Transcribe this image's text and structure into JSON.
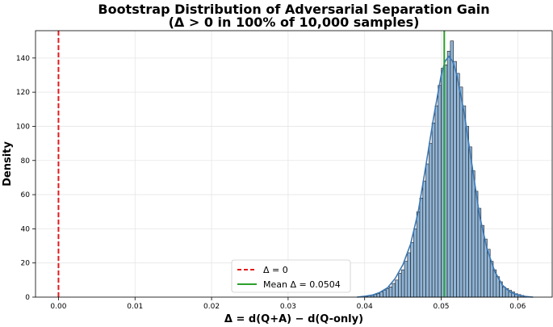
{
  "chart_data": {
    "type": "histogram",
    "title": "Bootstrap Distribution of Adversarial Separation Gain",
    "subtitle": "(Δ > 0 in 100% of 10,000 samples)",
    "xlabel": "Δ = d(Q+A) − d(Q-only)",
    "ylabel": "Density",
    "xlim": [
      -0.003,
      0.0645
    ],
    "ylim": [
      0,
      156
    ],
    "x_ticks": [
      0.0,
      0.01,
      0.02,
      0.03,
      0.04,
      0.05,
      0.06
    ],
    "x_tick_labels": [
      "0.00",
      "0.01",
      "0.02",
      "0.03",
      "0.04",
      "0.05",
      "0.06"
    ],
    "y_ticks": [
      0,
      20,
      40,
      60,
      80,
      100,
      120,
      140
    ],
    "y_tick_labels": [
      "0",
      "20",
      "40",
      "60",
      "80",
      "100",
      "120",
      "140"
    ],
    "grid": true,
    "bar_color": "#8fb4d6",
    "bar_edge_color": "#1a1a1a",
    "kde_color": "#3c78b4",
    "bin_width": 0.0004,
    "bins": [
      [
        0.04,
        0.5
      ],
      [
        0.0404,
        1
      ],
      [
        0.0408,
        1
      ],
      [
        0.0412,
        1.5
      ],
      [
        0.0416,
        2
      ],
      [
        0.042,
        3
      ],
      [
        0.0424,
        4
      ],
      [
        0.0428,
        5
      ],
      [
        0.0432,
        6
      ],
      [
        0.0436,
        8
      ],
      [
        0.044,
        10
      ],
      [
        0.0444,
        14
      ],
      [
        0.0448,
        16
      ],
      [
        0.0452,
        21
      ],
      [
        0.0456,
        26
      ],
      [
        0.046,
        32
      ],
      [
        0.0464,
        40
      ],
      [
        0.0468,
        50
      ],
      [
        0.0472,
        58
      ],
      [
        0.0476,
        68
      ],
      [
        0.048,
        78
      ],
      [
        0.0484,
        90
      ],
      [
        0.0488,
        102
      ],
      [
        0.0492,
        112
      ],
      [
        0.0496,
        124
      ],
      [
        0.05,
        134
      ],
      [
        0.0504,
        136
      ],
      [
        0.0508,
        144
      ],
      [
        0.0512,
        150
      ],
      [
        0.0516,
        138
      ],
      [
        0.052,
        131
      ],
      [
        0.0524,
        123
      ],
      [
        0.0528,
        112
      ],
      [
        0.0532,
        100
      ],
      [
        0.0536,
        88
      ],
      [
        0.054,
        74
      ],
      [
        0.0544,
        62
      ],
      [
        0.0548,
        52
      ],
      [
        0.0552,
        42
      ],
      [
        0.0556,
        34
      ],
      [
        0.056,
        28
      ],
      [
        0.0564,
        21
      ],
      [
        0.0568,
        16
      ],
      [
        0.0572,
        12
      ],
      [
        0.0576,
        9
      ],
      [
        0.058,
        6
      ],
      [
        0.0584,
        5
      ],
      [
        0.0588,
        4
      ],
      [
        0.0592,
        3
      ],
      [
        0.0596,
        2
      ],
      [
        0.06,
        1.5
      ],
      [
        0.0604,
        1
      ],
      [
        0.0608,
        0.5
      ]
    ],
    "kde": [
      [
        0.039,
        0
      ],
      [
        0.04,
        0.5
      ],
      [
        0.041,
        1.2
      ],
      [
        0.042,
        2.8
      ],
      [
        0.043,
        5.5
      ],
      [
        0.044,
        11
      ],
      [
        0.045,
        19
      ],
      [
        0.046,
        31
      ],
      [
        0.047,
        50
      ],
      [
        0.048,
        77
      ],
      [
        0.049,
        105
      ],
      [
        0.05,
        130
      ],
      [
        0.0505,
        138
      ],
      [
        0.051,
        141
      ],
      [
        0.0515,
        138
      ],
      [
        0.052,
        131
      ],
      [
        0.053,
        108
      ],
      [
        0.054,
        78
      ],
      [
        0.055,
        48
      ],
      [
        0.056,
        28
      ],
      [
        0.057,
        15
      ],
      [
        0.058,
        7
      ],
      [
        0.059,
        3
      ],
      [
        0.06,
        1.3
      ],
      [
        0.061,
        0.4
      ],
      [
        0.062,
        0
      ]
    ],
    "reference_lines": [
      {
        "name": "Δ = 0",
        "x": 0.0,
        "color": "#e41a1c",
        "style": "dashed"
      },
      {
        "name": "Mean Δ = 0.0504",
        "x": 0.0504,
        "color": "#2ca02c",
        "style": "solid"
      }
    ],
    "legend": {
      "placement": "bottom-center",
      "entries": [
        "Δ = 0",
        "Mean Δ = 0.0504"
      ]
    }
  }
}
